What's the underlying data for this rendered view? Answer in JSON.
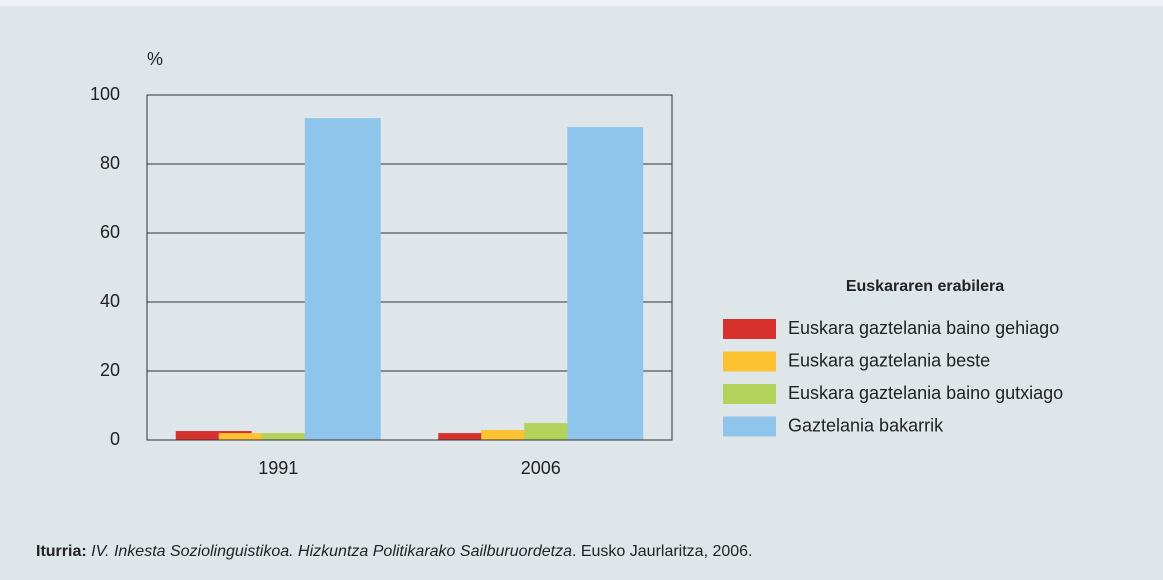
{
  "chart_data": {
    "type": "bar",
    "ylabel": "%",
    "categories": [
      "1991",
      "2006"
    ],
    "series": [
      {
        "name": "Euskara gaztelania baino gehiago",
        "color": "#d7312e",
        "values": [
          2.6,
          2.0
        ]
      },
      {
        "name": "Euskara gaztelania beste",
        "color": "#fcc231",
        "values": [
          2.0,
          2.9
        ]
      },
      {
        "name": "Euskara gaztelania baino gutxiago",
        "color": "#b3d25b",
        "values": [
          2.0,
          4.9
        ]
      },
      {
        "name": "Gaztelania bakarrik",
        "color": "#8fc5ea",
        "values": [
          93.3,
          90.7
        ]
      }
    ],
    "legend_title": "Euskararen erabilera",
    "legend": "right",
    "ylim": [
      0,
      100
    ],
    "yticks": [
      0,
      20,
      40,
      60,
      80,
      100
    ],
    "grid": true,
    "source": {
      "label": "Iturria:",
      "title": "IV. Inkesta Soziolinguistikoa. Hizkuntza Politikarako Sailburuordetza",
      "rest": ". Eusko Jaurlaritza, 2006."
    }
  }
}
